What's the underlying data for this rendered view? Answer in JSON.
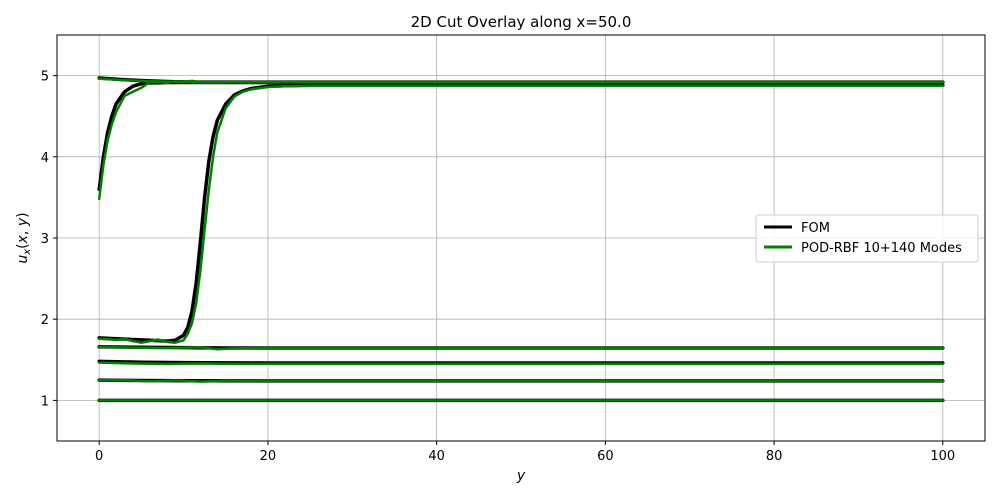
{
  "chart_data": {
    "type": "line",
    "title": "2D Cut Overlay along x=50.0",
    "xlabel": "y",
    "ylabel": "u_x(x, y)",
    "xlim": [
      -5,
      105
    ],
    "ylim": [
      0.5,
      5.5
    ],
    "xticks": [
      0,
      20,
      40,
      60,
      80,
      100
    ],
    "yticks": [
      1,
      2,
      3,
      4,
      5
    ],
    "grid": true,
    "legend": {
      "placement": "center-right",
      "entries": [
        {
          "label": "FOM",
          "color": "#000000"
        },
        {
          "label": "POD-RBF 10+140 Modes",
          "color": "#008000"
        }
      ]
    },
    "series": [
      {
        "group": "FOM",
        "color": "#000000",
        "x": [
          0,
          20,
          40,
          60,
          80,
          100
        ],
        "y": [
          1.0,
          1.0,
          1.0,
          1.0,
          1.0,
          1.0
        ]
      },
      {
        "group": "FOM",
        "color": "#000000",
        "x": [
          0,
          5,
          10,
          20,
          40,
          60,
          80,
          100
        ],
        "y": [
          1.25,
          1.245,
          1.242,
          1.24,
          1.24,
          1.24,
          1.24,
          1.24
        ]
      },
      {
        "group": "FOM",
        "color": "#000000",
        "x": [
          0,
          5,
          10,
          20,
          40,
          60,
          80,
          100
        ],
        "y": [
          1.48,
          1.47,
          1.465,
          1.46,
          1.46,
          1.46,
          1.46,
          1.46
        ]
      },
      {
        "group": "FOM",
        "color": "#000000",
        "x": [
          0,
          5,
          10,
          15,
          20,
          40,
          60,
          80,
          100
        ],
        "y": [
          1.66,
          1.655,
          1.65,
          1.645,
          1.645,
          1.645,
          1.645,
          1.645,
          1.645
        ]
      },
      {
        "group": "FOM",
        "color": "#000000",
        "x": [
          0,
          2,
          4,
          6,
          8,
          9,
          10,
          10.5,
          11,
          11.5,
          12,
          12.5,
          13,
          13.5,
          14,
          15,
          16,
          17,
          18,
          20,
          22,
          25,
          30,
          40,
          60,
          80,
          100
        ],
        "y": [
          1.77,
          1.76,
          1.75,
          1.74,
          1.73,
          1.74,
          1.8,
          1.9,
          2.1,
          2.45,
          2.95,
          3.5,
          3.95,
          4.25,
          4.45,
          4.65,
          4.76,
          4.81,
          4.84,
          4.87,
          4.875,
          4.88,
          4.88,
          4.88,
          4.88,
          4.88,
          4.88
        ]
      },
      {
        "group": "FOM",
        "color": "#000000",
        "x": [
          0,
          0.5,
          1,
          1.5,
          2,
          3,
          4,
          5,
          6,
          7,
          8,
          10,
          15,
          20,
          40,
          60,
          80,
          100
        ],
        "y": [
          3.6,
          4.0,
          4.3,
          4.5,
          4.65,
          4.8,
          4.87,
          4.9,
          4.91,
          4.91,
          4.915,
          4.915,
          4.915,
          4.915,
          4.915,
          4.915,
          4.915,
          4.915
        ]
      },
      {
        "group": "FOM",
        "color": "#000000",
        "x": [
          0,
          3,
          6,
          9,
          12,
          15,
          20,
          40,
          60,
          80,
          100
        ],
        "y": [
          4.97,
          4.95,
          4.935,
          4.925,
          4.92,
          4.92,
          4.92,
          4.92,
          4.92,
          4.92,
          4.92
        ]
      },
      {
        "group": "POD-RBF 10+140 Modes",
        "color": "#008000",
        "x": [
          0,
          20,
          40,
          60,
          80,
          100
        ],
        "y": [
          1.0,
          1.0,
          1.0,
          1.0,
          1.0,
          1.0
        ]
      },
      {
        "group": "POD-RBF 10+140 Modes",
        "color": "#008000",
        "x": [
          0,
          3,
          6,
          9,
          12,
          15,
          20,
          40,
          60,
          80,
          100
        ],
        "y": [
          1.25,
          1.25,
          1.235,
          1.245,
          1.232,
          1.24,
          1.24,
          1.24,
          1.24,
          1.24,
          1.24
        ]
      },
      {
        "group": "POD-RBF 10+140 Modes",
        "color": "#008000",
        "x": [
          0,
          4,
          8,
          12,
          16,
          20,
          40,
          60,
          80,
          100
        ],
        "y": [
          1.465,
          1.455,
          1.45,
          1.455,
          1.45,
          1.45,
          1.45,
          1.45,
          1.45,
          1.45
        ]
      },
      {
        "group": "POD-RBF 10+140 Modes",
        "color": "#008000",
        "x": [
          0,
          4,
          8,
          12,
          14,
          16,
          20,
          40,
          60,
          80,
          100
        ],
        "y": [
          1.66,
          1.65,
          1.645,
          1.655,
          1.63,
          1.64,
          1.645,
          1.645,
          1.645,
          1.645,
          1.645
        ]
      },
      {
        "group": "POD-RBF 10+140 Modes",
        "color": "#008000",
        "x": [
          0,
          2,
          3,
          4,
          5,
          6,
          7,
          8,
          9,
          10,
          10.5,
          11,
          11.5,
          12,
          12.5,
          13,
          13.5,
          14,
          15,
          16,
          17,
          18,
          20,
          22,
          25,
          30,
          40,
          60,
          80,
          100
        ],
        "y": [
          1.76,
          1.745,
          1.755,
          1.73,
          1.71,
          1.73,
          1.75,
          1.72,
          1.71,
          1.74,
          1.82,
          1.95,
          2.2,
          2.6,
          3.1,
          3.6,
          4.0,
          4.3,
          4.6,
          4.74,
          4.8,
          4.83,
          4.86,
          4.87,
          4.875,
          4.875,
          4.875,
          4.875,
          4.875,
          4.875
        ]
      },
      {
        "group": "POD-RBF 10+140 Modes",
        "color": "#008000",
        "x": [
          0,
          0.5,
          1,
          1.5,
          2,
          3,
          4,
          5,
          6,
          7,
          8,
          9,
          10,
          11,
          12,
          14,
          16,
          20,
          40,
          60,
          80,
          100
        ],
        "y": [
          3.48,
          3.9,
          4.2,
          4.4,
          4.55,
          4.75,
          4.8,
          4.85,
          4.92,
          4.92,
          4.91,
          4.93,
          4.92,
          4.935,
          4.915,
          4.915,
          4.92,
          4.92,
          4.92,
          4.92,
          4.92,
          4.92
        ]
      },
      {
        "group": "POD-RBF 10+140 Modes",
        "color": "#008000",
        "x": [
          0,
          3,
          6,
          9,
          12,
          15,
          20,
          40,
          60,
          80,
          100
        ],
        "y": [
          4.96,
          4.945,
          4.93,
          4.925,
          4.92,
          4.92,
          4.92,
          4.92,
          4.92,
          4.92,
          4.92
        ]
      }
    ]
  }
}
